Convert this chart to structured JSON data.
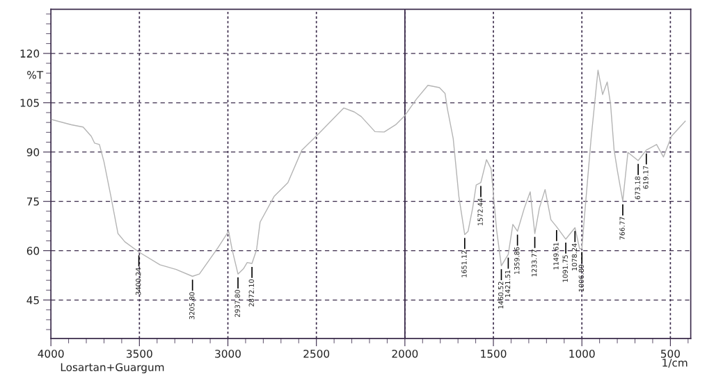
{
  "chart_data": {
    "type": "line",
    "xlabel": "1/cm",
    "ylabel": "%T",
    "xlim": [
      4000,
      385
    ],
    "ylim": [
      33.3,
      133.4
    ],
    "xticks": [
      4000,
      3500,
      3000,
      2500,
      2000,
      1500,
      1000,
      500
    ],
    "yticks": [
      45,
      60,
      75,
      90,
      105,
      120
    ],
    "grid": true,
    "marker": "none",
    "line_style": "solid",
    "ref_lines": [
      {
        "axis": "x",
        "value": 2000,
        "label": null,
        "color": "#3a2a4a",
        "line_style": "solid"
      }
    ],
    "series": [
      {
        "color": "#b4b4b4",
        "x": [
          3996,
          3884,
          3818,
          3772,
          3753,
          3726,
          3700,
          3661,
          3621,
          3582,
          3503,
          3384,
          3292,
          3200,
          3161,
          3055,
          2996,
          2976,
          2943,
          2911,
          2891,
          2864,
          2838,
          2818,
          2739,
          2661,
          2582,
          2489,
          2345,
          2286,
          2247,
          2169,
          2117,
          2052,
          2000,
          1935,
          1870,
          1805,
          1773,
          1760,
          1727,
          1695,
          1662,
          1643,
          1617,
          1597,
          1571,
          1539,
          1513,
          1481,
          1455,
          1416,
          1390,
          1364,
          1325,
          1292,
          1266,
          1240,
          1208,
          1175,
          1143,
          1091,
          1039,
          1013,
          1000,
          987,
          948,
          909,
          883,
          857,
          838,
          818,
          799,
          769,
          740,
          682,
          636,
          578,
          539,
          494,
          416
        ],
        "values": [
          99.9,
          98.3,
          97.6,
          94.8,
          92.7,
          92.3,
          87.0,
          76.5,
          65.2,
          62.7,
          59.6,
          55.7,
          54.3,
          52.2,
          52.9,
          61.0,
          65.9,
          60.3,
          52.9,
          54.6,
          56.4,
          56.1,
          60.3,
          68.7,
          76.5,
          80.7,
          90.6,
          95.5,
          103.4,
          102.2,
          100.8,
          96.2,
          96.1,
          98.3,
          101.1,
          106.1,
          110.3,
          109.6,
          107.8,
          103.2,
          94.1,
          76.5,
          64.9,
          65.9,
          73.0,
          80.0,
          80.7,
          87.7,
          84.9,
          65.9,
          55.4,
          58.9,
          68.0,
          65.9,
          73.0,
          77.9,
          65.2,
          73.0,
          78.6,
          69.4,
          67.3,
          63.5,
          67.0,
          60.6,
          60.6,
          69.4,
          94.1,
          114.9,
          107.5,
          111.3,
          104.6,
          90.6,
          84.2,
          75.1,
          89.9,
          87.4,
          90.6,
          92.3,
          88.5,
          94.8,
          99.4
        ]
      }
    ],
    "annotations": [
      {
        "text": "3400.24",
        "x": 3503,
        "y": 59.6
      },
      {
        "text": "3205.80",
        "x": 3200,
        "y": 52.2
      },
      {
        "text": "2937.80",
        "x": 2943,
        "y": 52.9
      },
      {
        "text": "2872.10",
        "x": 2864,
        "y": 56.1
      },
      {
        "text": "1651.12",
        "x": 1662,
        "y": 64.9
      },
      {
        "text": "1572.44",
        "x": 1571,
        "y": 80.7
      },
      {
        "text": "1460.52",
        "x": 1455,
        "y": 55.4
      },
      {
        "text": "1421.51",
        "x": 1416,
        "y": 58.9
      },
      {
        "text": "1359.86",
        "x": 1364,
        "y": 65.9
      },
      {
        "text": "1233.77",
        "x": 1266,
        "y": 65.2
      },
      {
        "text": "1149.61",
        "x": 1143,
        "y": 67.3
      },
      {
        "text": "1091.75",
        "x": 1091,
        "y": 63.5
      },
      {
        "text": "1078.24",
        "x": 1039,
        "y": 67.0
      },
      {
        "text": "1006.89",
        "x": 1000,
        "y": 60.6
      },
      {
        "text": "766.77",
        "x": 769,
        "y": 75.1
      },
      {
        "text": "673.18",
        "x": 682,
        "y": 87.4
      },
      {
        "text": "619.17",
        "x": 636,
        "y": 90.6
      },
      "Losartan+Guargum"
    ]
  }
}
